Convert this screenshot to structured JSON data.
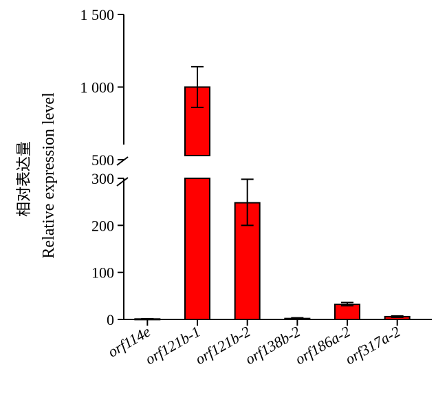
{
  "chart_data": {
    "type": "bar",
    "categories": [
      "orf114e",
      "orf121b-1",
      "orf121b-2",
      "orf138b-2",
      "orf186a-2",
      "orf317a-2"
    ],
    "category_parts": [
      {
        "prefix": "orf114e",
        "suffix": ""
      },
      {
        "prefix": "orf121b-1",
        "suffix": ""
      },
      {
        "prefix": "orf121b-2",
        "suffix": ""
      },
      {
        "prefix": "orf138b-2",
        "suffix": ""
      },
      {
        "prefix": "orf186a-2",
        "suffix": ""
      },
      {
        "prefix": "orf317a-2",
        "suffix": ""
      }
    ],
    "values": [
      1,
      1000,
      248,
      2,
      32,
      6
    ],
    "error_high": [
      1.5,
      1140,
      298,
      3.5,
      36,
      7.5
    ],
    "error_low": [
      0.5,
      860,
      200,
      1,
      29,
      4.5
    ],
    "ylabel_zh": "相对表达量",
    "ylabel": "Relative expression level",
    "y_segments": [
      {
        "range": [
          0,
          300
        ],
        "ticks": [
          0,
          100,
          200,
          300
        ],
        "tick_labels": [
          "0",
          "100",
          "200",
          "300"
        ]
      },
      {
        "range": [
          400,
          1500
        ],
        "ticks": [
          500,
          1000,
          1500
        ],
        "tick_labels": [
          "500",
          "1 000",
          "1 500"
        ]
      }
    ],
    "axis_break": true,
    "bar_color": "#ff0000",
    "grid": false,
    "legend": "none"
  }
}
